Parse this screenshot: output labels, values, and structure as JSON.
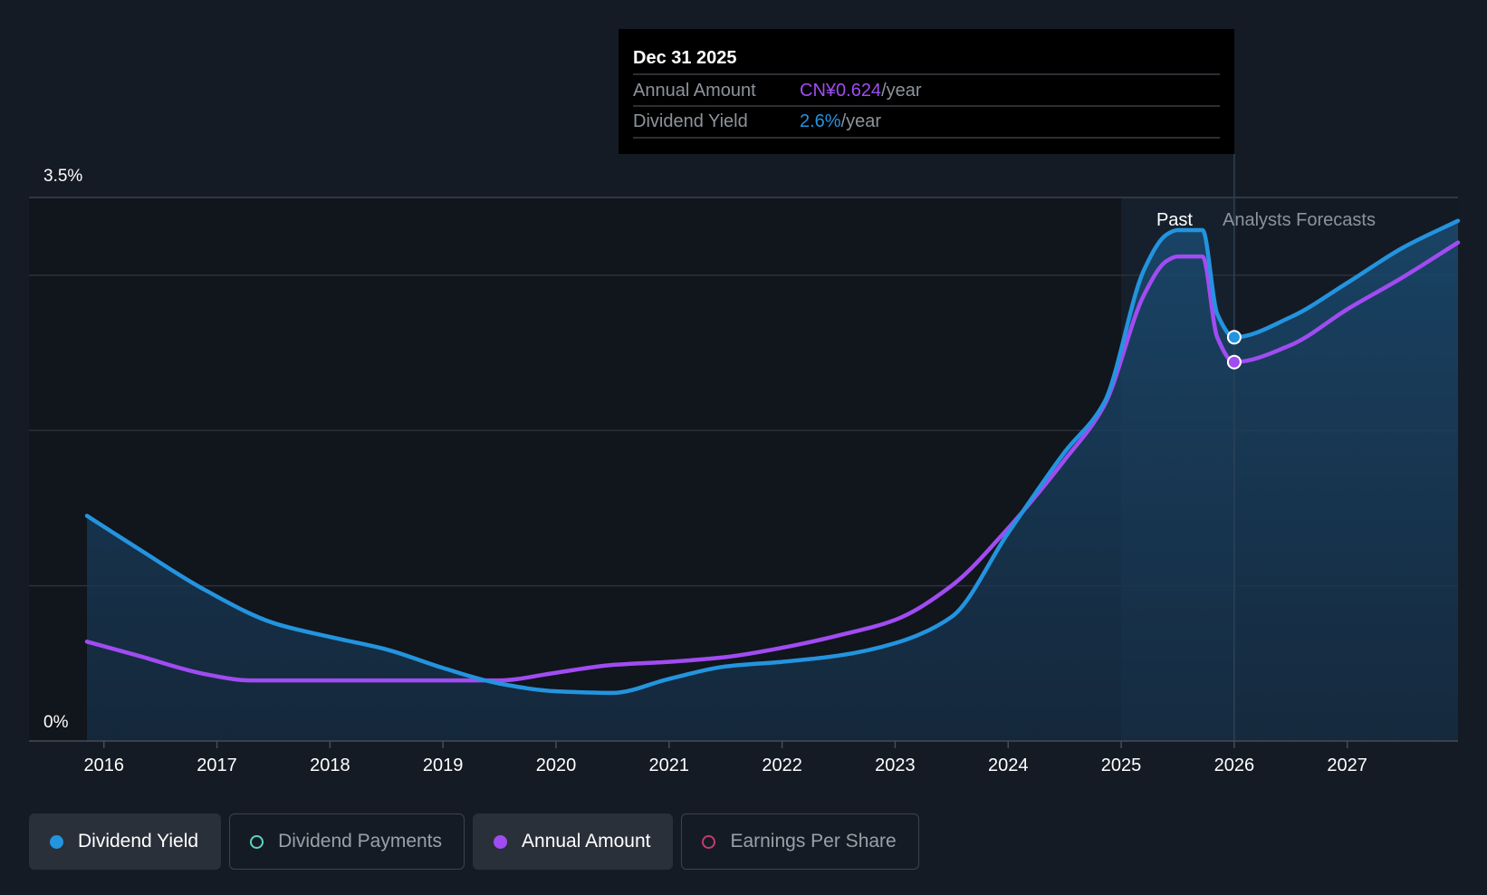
{
  "colors": {
    "background": "#151b24",
    "dividend_yield": "#2394df",
    "annual_amount": "#a04cf2",
    "dividend_payments": "#5fd3c3",
    "earnings_per_share": "#c23b6e",
    "grid": "#2b323c",
    "tooltip_bg": "#000000"
  },
  "tooltip": {
    "date": "Dec 31 2025",
    "rows": [
      {
        "label": "Annual Amount",
        "value": "CN¥0.624",
        "unit": "/year",
        "color": "#a04cf2"
      },
      {
        "label": "Dividend Yield",
        "value": "2.6%",
        "unit": "/year",
        "color": "#2394df"
      }
    ]
  },
  "regions": {
    "past_label": "Past",
    "forecast_label": "Analysts Forecasts"
  },
  "legend": [
    {
      "label": "Dividend Yield",
      "active": true,
      "filled": true,
      "color": "#2394df",
      "name": "legend-dividend-yield"
    },
    {
      "label": "Dividend Payments",
      "active": false,
      "filled": false,
      "color": "#5fd3c3",
      "name": "legend-dividend-payments"
    },
    {
      "label": "Annual Amount",
      "active": true,
      "filled": true,
      "color": "#a04cf2",
      "name": "legend-annual-amount"
    },
    {
      "label": "Earnings Per Share",
      "active": false,
      "filled": false,
      "color": "#c23b6e",
      "name": "legend-earnings-per-share"
    }
  ],
  "chart_data": {
    "type": "line",
    "title": "",
    "xlabel": "",
    "ylabel": "",
    "x_range": [
      2015.85,
      2027.98
    ],
    "ylim": [
      0,
      3.5
    ],
    "y_tick_labels": [
      {
        "value": 3.5,
        "label": "3.5%"
      },
      {
        "value": 0,
        "label": "0%"
      }
    ],
    "gridlines": [
      3.0,
      2.0,
      1.0
    ],
    "x_ticks": [
      2016,
      2017,
      2018,
      2019,
      2020,
      2021,
      2022,
      2023,
      2024,
      2025,
      2026,
      2027
    ],
    "x_tick_labels": [
      "2016",
      "2017",
      "2018",
      "2019",
      "2020",
      "2021",
      "2022",
      "2023",
      "2024",
      "2025",
      "2026",
      "2027"
    ],
    "past_region": [
      2025.0,
      2026.0
    ],
    "forecast_start": 2026.0,
    "tooltip_x": 2026.0,
    "series": [
      {
        "name": "Dividend Yield",
        "unit": "%",
        "color": "#2394df",
        "fill": true,
        "points": [
          [
            2015.85,
            1.45
          ],
          [
            2016.3,
            1.24
          ],
          [
            2016.9,
            0.97
          ],
          [
            2017.5,
            0.76
          ],
          [
            2018.0,
            0.67
          ],
          [
            2018.5,
            0.59
          ],
          [
            2019.0,
            0.47
          ],
          [
            2019.5,
            0.37
          ],
          [
            2020.0,
            0.32
          ],
          [
            2020.5,
            0.31
          ],
          [
            2021.0,
            0.4
          ],
          [
            2021.5,
            0.48
          ],
          [
            2022.0,
            0.51
          ],
          [
            2022.5,
            0.55
          ],
          [
            2023.0,
            0.63
          ],
          [
            2023.5,
            0.8
          ],
          [
            2024.0,
            1.34
          ],
          [
            2024.5,
            1.86
          ],
          [
            2024.85,
            2.18
          ],
          [
            2025.2,
            3.03
          ],
          [
            2025.4,
            3.26
          ],
          [
            2025.5,
            3.29
          ],
          [
            2025.65,
            3.29
          ],
          [
            2025.72,
            3.29
          ],
          [
            2025.85,
            2.75
          ],
          [
            2026.0,
            2.6
          ],
          [
            2026.5,
            2.73
          ],
          [
            2027.0,
            2.95
          ],
          [
            2027.5,
            3.18
          ],
          [
            2027.98,
            3.35
          ]
        ]
      },
      {
        "name": "Annual Amount",
        "unit": "CN¥",
        "color": "#a04cf2",
        "fill": false,
        "points": [
          [
            2015.85,
            0.64
          ],
          [
            2016.3,
            0.55
          ],
          [
            2016.9,
            0.43
          ],
          [
            2017.3,
            0.39
          ],
          [
            2018.0,
            0.39
          ],
          [
            2019.0,
            0.39
          ],
          [
            2019.5,
            0.39
          ],
          [
            2020.0,
            0.44
          ],
          [
            2020.5,
            0.49
          ],
          [
            2021.0,
            0.51
          ],
          [
            2021.5,
            0.54
          ],
          [
            2022.0,
            0.6
          ],
          [
            2022.5,
            0.68
          ],
          [
            2023.0,
            0.78
          ],
          [
            2023.5,
            1.0
          ],
          [
            2024.0,
            1.37
          ],
          [
            2024.5,
            1.81
          ],
          [
            2024.85,
            2.16
          ],
          [
            2025.2,
            2.87
          ],
          [
            2025.4,
            3.09
          ],
          [
            2025.5,
            3.12
          ],
          [
            2025.65,
            3.12
          ],
          [
            2025.72,
            3.12
          ],
          [
            2025.85,
            2.6
          ],
          [
            2026.0,
            2.44
          ],
          [
            2026.5,
            2.55
          ],
          [
            2027.0,
            2.78
          ],
          [
            2027.5,
            2.99
          ],
          [
            2027.98,
            3.21
          ]
        ]
      }
    ]
  }
}
